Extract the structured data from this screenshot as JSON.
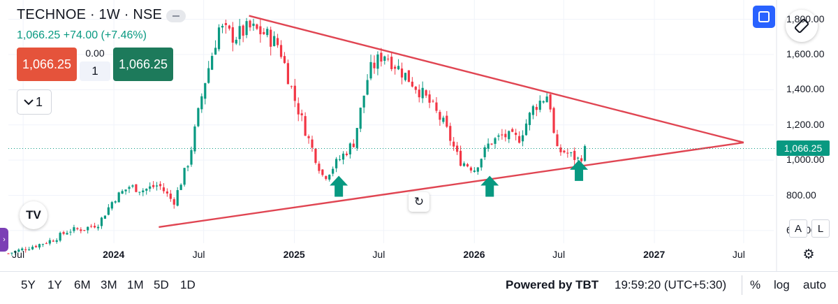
{
  "header": {
    "title": "TECHNOE · 1W · NSE",
    "price_change": "1,066.25 +74.00 (+7.46%)",
    "sell_price": "1,066.25",
    "buy_price": "1,066.25",
    "spread": "0.00",
    "quantity": "1",
    "indicator_count": "1"
  },
  "icons": {
    "fullscreen": "fullscreen-icon",
    "rotate": "rotate-screen-icon",
    "reset": "reset-icon",
    "settings": "gear-icon",
    "logo": "tradingview-logo"
  },
  "logo_text": "TV",
  "axis_buttons": {
    "auto_label": "A",
    "log_label": "L"
  },
  "last_price_label": "1,066.25",
  "bottom_bar": {
    "ranges": [
      "5Y",
      "1Y",
      "6M",
      "3M",
      "1M",
      "5D",
      "1D"
    ],
    "powered_by": "Powered by TBT",
    "time": "19:59:20 (UTC+5:30)",
    "percent": "%",
    "log": "log",
    "auto": "auto"
  },
  "colors": {
    "up": "#089981",
    "down": "#f23645",
    "trendline": "#e04552",
    "arrow": "#089981",
    "accent": "#2962ff"
  },
  "chart_data": {
    "type": "candlestick",
    "symbol": "TECHNOE",
    "interval": "1W",
    "exchange": "NSE",
    "x_tick_labels": [
      {
        "label": "Jul",
        "date": "2023-07",
        "year": false
      },
      {
        "label": "2024",
        "date": "2024-01",
        "year": true
      },
      {
        "label": "Jul",
        "date": "2024-07",
        "year": false
      },
      {
        "label": "2025",
        "date": "2025-01",
        "year": true
      },
      {
        "label": "Jul",
        "date": "2025-07",
        "year": false
      },
      {
        "label": "2026",
        "date": "2026-01",
        "year": true
      },
      {
        "label": "Jul",
        "date": "2026-07",
        "year": false
      },
      {
        "label": "2027",
        "date": "2027-01",
        "year": true
      },
      {
        "label": "Jul",
        "date": "2027-07",
        "year": false
      }
    ],
    "y_tick_labels": [
      "600.00",
      "800.00",
      "1,000.00",
      "1,200.00",
      "1,400.00",
      "1,600.00",
      "1,800.00"
    ],
    "y_ticks": [
      600,
      800,
      1000,
      1200,
      1400,
      1600,
      1800
    ],
    "ylim": [
      560,
      1870
    ],
    "xlim": [
      "2023-06",
      "2027-08"
    ],
    "last_price": 1066.25,
    "close_path": [
      [
        "2023-06",
        470
      ],
      [
        "2023-08",
        520
      ],
      [
        "2023-09",
        550
      ],
      [
        "2023-10",
        600
      ],
      [
        "2023-11",
        610
      ],
      [
        "2023-12",
        640
      ],
      [
        "2024-01",
        780
      ],
      [
        "2024-02",
        850
      ],
      [
        "2024-03",
        830
      ],
      [
        "2024-04",
        860
      ],
      [
        "2024-05",
        760
      ],
      [
        "2024-06",
        1000
      ],
      [
        "2024-07",
        1420
      ],
      [
        "2024-08",
        1750
      ],
      [
        "2024-09",
        1700
      ],
      [
        "2024-10",
        1750
      ],
      [
        "2024-11",
        1720
      ],
      [
        "2024-12",
        1650
      ],
      [
        "2025-01",
        1350
      ],
      [
        "2025-02",
        1100
      ],
      [
        "2025-03",
        900
      ],
      [
        "2025-04",
        1000
      ],
      [
        "2025-05",
        1100
      ],
      [
        "2025-06",
        1500
      ],
      [
        "2025-07",
        1610
      ],
      [
        "2025-08",
        1520
      ],
      [
        "2025-09",
        1430
      ],
      [
        "2025-10",
        1330
      ],
      [
        "2025-11",
        1200
      ],
      [
        "2025-12",
        1000
      ],
      [
        "2026-01",
        950
      ],
      [
        "2026-02",
        1100
      ],
      [
        "2026-03",
        1140
      ],
      [
        "2026-04",
        1120
      ],
      [
        "2026-05",
        1300
      ],
      [
        "2026-06",
        1380
      ],
      [
        "2026-06-15",
        1050
      ],
      [
        "2026-07",
        1050
      ],
      [
        "2026-08",
        1000
      ],
      [
        "2026-08-15",
        1066.25
      ]
    ],
    "trendlines": [
      {
        "name": "upper",
        "from": [
          "2024-10",
          1820
        ],
        "to": [
          "2027-07",
          1100
        ]
      },
      {
        "name": "lower",
        "from": [
          "2024-04",
          620
        ],
        "to": [
          "2027-07",
          1100
        ]
      }
    ],
    "marker_arrows": [
      {
        "date": "2025-04",
        "price": 800
      },
      {
        "date": "2026-02",
        "price": 800
      },
      {
        "date": "2026-08",
        "price": 890
      }
    ]
  }
}
